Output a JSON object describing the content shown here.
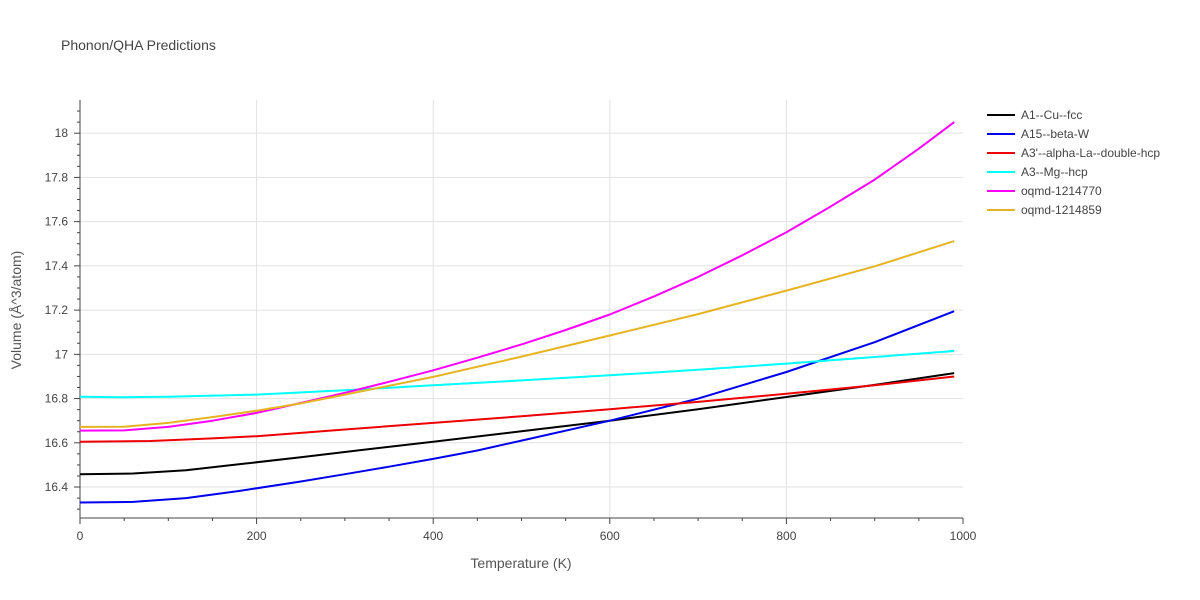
{
  "chart_data": {
    "type": "line",
    "title": "Phonon/QHA Predictions",
    "xlabel": "Temperature (K)",
    "ylabel": "Volume (Å^3/atom)",
    "xlim": [
      0,
      1000
    ],
    "ylim": [
      16.26,
      18.15
    ],
    "xticks": [
      0,
      200,
      400,
      600,
      800,
      1000
    ],
    "yticks": [
      16.4,
      16.6,
      16.8,
      17,
      17.2,
      17.4,
      17.6,
      17.8,
      18
    ],
    "ytick_labels": [
      "16.4",
      "16.6",
      "16.8",
      "17",
      "17.2",
      "17.4",
      "17.6",
      "17.8",
      "18"
    ],
    "grid": true,
    "legend_position": "top-right outside",
    "series": [
      {
        "name": "A1--Cu--fcc",
        "color": "#000000",
        "x": [
          0,
          60,
          120,
          180,
          250,
          320,
          400,
          500,
          600,
          700,
          800,
          900,
          990
        ],
        "y": [
          16.458,
          16.461,
          16.476,
          16.503,
          16.535,
          16.568,
          16.605,
          16.652,
          16.7,
          16.752,
          16.807,
          16.862,
          16.915
        ]
      },
      {
        "name": "A15--beta-W",
        "color": "#0000ee",
        "x": [
          0,
          60,
          120,
          180,
          250,
          300,
          350,
          400,
          450,
          500,
          600,
          700,
          800,
          900,
          990
        ],
        "y": [
          16.33,
          16.333,
          16.35,
          16.382,
          16.425,
          16.458,
          16.492,
          16.527,
          16.565,
          16.61,
          16.7,
          16.8,
          16.92,
          17.055,
          17.195
        ]
      },
      {
        "name": "A3'--alpha-La--double-hcp",
        "color": "#ee0000",
        "x": [
          0,
          80,
          150,
          200,
          300,
          400,
          500,
          600,
          700,
          800,
          900,
          990
        ],
        "y": [
          16.605,
          16.608,
          16.62,
          16.63,
          16.66,
          16.69,
          16.72,
          16.752,
          16.785,
          16.822,
          16.86,
          16.9
        ]
      },
      {
        "name": "A3--Mg--hcp",
        "color": "#00ffff",
        "x": [
          0,
          50,
          100,
          200,
          300,
          400,
          500,
          600,
          700,
          800,
          900,
          990
        ],
        "y": [
          16.808,
          16.806,
          16.808,
          16.818,
          16.838,
          16.86,
          16.882,
          16.905,
          16.93,
          16.958,
          16.988,
          17.015
        ]
      },
      {
        "name": "oqmd-1214770",
        "color": "#ff00ff",
        "x": [
          0,
          50,
          100,
          150,
          200,
          250,
          300,
          350,
          400,
          450,
          500,
          550,
          600,
          650,
          700,
          750,
          800,
          850,
          900,
          950,
          990
        ],
        "y": [
          16.655,
          16.656,
          16.672,
          16.7,
          16.735,
          16.78,
          16.826,
          16.876,
          16.928,
          16.985,
          17.045,
          17.11,
          17.18,
          17.262,
          17.35,
          17.448,
          17.552,
          17.668,
          17.79,
          17.93,
          18.05
        ]
      },
      {
        "name": "oqmd-1214859",
        "color": "#e6b422",
        "x": [
          0,
          50,
          100,
          150,
          200,
          250,
          300,
          400,
          500,
          600,
          700,
          800,
          900,
          990
        ],
        "y": [
          16.672,
          16.673,
          16.69,
          16.716,
          16.745,
          16.778,
          16.818,
          16.898,
          16.99,
          17.085,
          17.182,
          17.288,
          17.398,
          17.512
        ]
      }
    ]
  }
}
